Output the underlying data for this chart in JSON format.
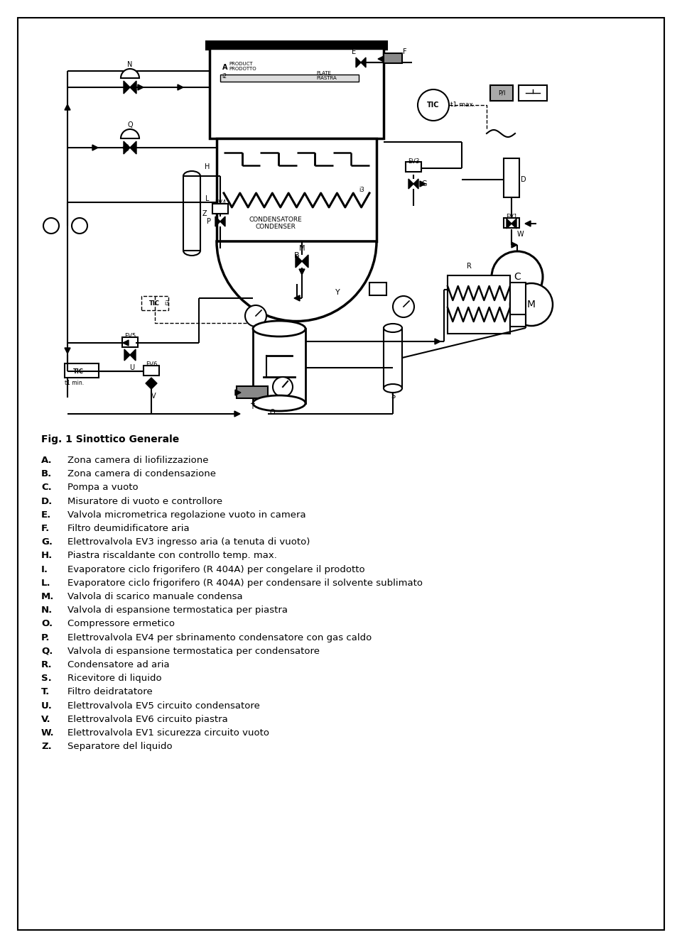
{
  "title": "Fig. 1 Sinottico Generale",
  "legend_items": [
    [
      "A.",
      "Zona camera di liofilizzazione"
    ],
    [
      "B.",
      "Zona camera di condensazione"
    ],
    [
      "C.",
      "Pompa a vuoto"
    ],
    [
      "D.",
      "Misuratore di vuoto e controllore"
    ],
    [
      "E.",
      "Valvola micrometrica regolazione vuoto in camera"
    ],
    [
      "F.",
      "Filtro deumidificatore aria"
    ],
    [
      "G.",
      "Elettrovalvola EV3 ingresso aria (a tenuta di vuoto)"
    ],
    [
      "H.",
      "Piastra riscaldante con controllo temp. max."
    ],
    [
      "I.",
      "Evaporatore ciclo frigorifero (R 404A) per congelare il prodotto"
    ],
    [
      "L.",
      "Evaporatore ciclo frigorifero (R 404A) per condensare il solvente sublimato"
    ],
    [
      "M.",
      "Valvola di scarico manuale condensa"
    ],
    [
      "N.",
      "Valvola di espansione termostatica per piastra"
    ],
    [
      "O.",
      "Compressore ermetico"
    ],
    [
      "P.",
      "Elettrovalvola EV4 per sbrinamento condensatore con gas caldo"
    ],
    [
      "Q.",
      "Valvola di espansione termostatica per condensatore"
    ],
    [
      "R.",
      "Condensatore ad aria"
    ],
    [
      "S.",
      "Ricevitore di liquido"
    ],
    [
      "T.",
      "Filtro deidratatore"
    ],
    [
      "U.",
      "Elettrovalvola EV5 circuito condensatore"
    ],
    [
      "V.",
      "Elettrovalvola EV6 circuito piastra"
    ],
    [
      "W.",
      "Elettrovalvola EV1 sicurezza circuito vuoto"
    ],
    [
      "Z.",
      "Separatore del liquido"
    ]
  ],
  "bg_color": "#ffffff",
  "text_color": "#000000",
  "diagram_color": "#000000",
  "title_fontsize": 10,
  "legend_fontsize": 9.5
}
